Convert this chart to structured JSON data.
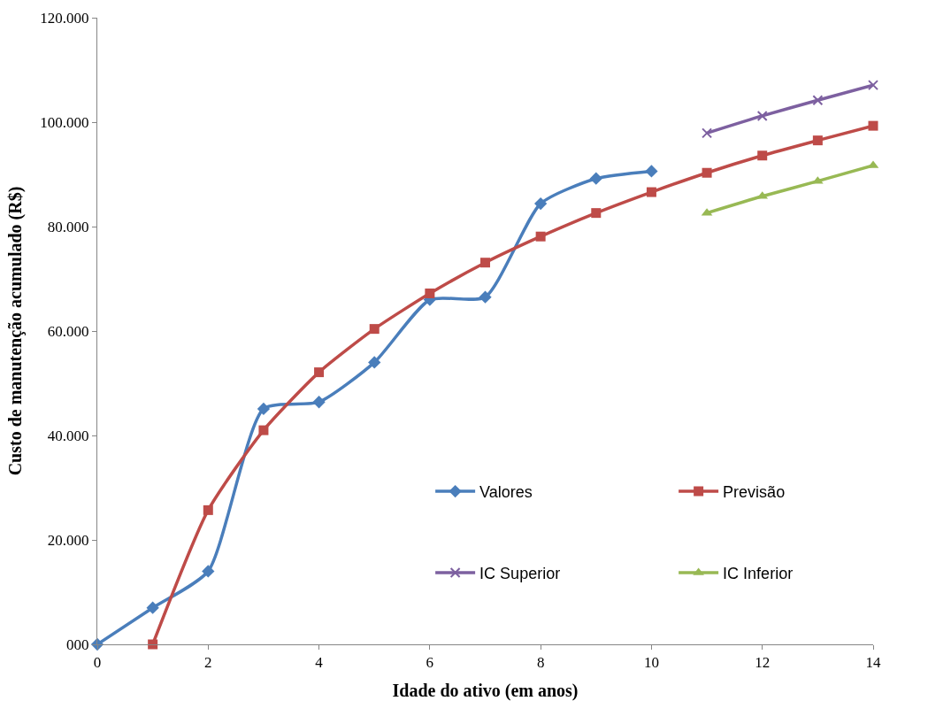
{
  "chart_data": {
    "type": "line",
    "xlabel": "Idade do ativo (em anos)",
    "ylabel": "Custo de manutenção acumulado (R$)",
    "xlim": [
      0,
      14
    ],
    "xticks": [
      0,
      2,
      4,
      6,
      8,
      10,
      12,
      14
    ],
    "ylim": [
      0,
      120000
    ],
    "yticks": [
      {
        "value": 0,
        "label": "000"
      },
      {
        "value": 20000,
        "label": "20.000"
      },
      {
        "value": 40000,
        "label": "40.000"
      },
      {
        "value": 60000,
        "label": "60.000"
      },
      {
        "value": 80000,
        "label": "80.000"
      },
      {
        "value": 100000,
        "label": "100.000"
      },
      {
        "value": 120000,
        "label": "120.000"
      }
    ],
    "legend": "bottom right",
    "line_style": "solid",
    "series": [
      {
        "name": "Valores",
        "color": "#4a7ebb",
        "marker": "diamond",
        "x": [
          0,
          1,
          2,
          3,
          4,
          5,
          6,
          7,
          8,
          9,
          10
        ],
        "values": [
          0,
          7000,
          14000,
          45100,
          46400,
          54000,
          66000,
          66500,
          84400,
          89200,
          90600
        ]
      },
      {
        "name": "Previsão",
        "color": "#be4b48",
        "marker": "square",
        "x": [
          1,
          2,
          3,
          4,
          5,
          6,
          7,
          8,
          9,
          10,
          11,
          12,
          13,
          14
        ],
        "values": [
          0,
          25700,
          41000,
          52100,
          60400,
          67200,
          73100,
          78100,
          82600,
          86600,
          90300,
          93600,
          96500,
          99300
        ]
      },
      {
        "name": "IC Superior",
        "color": "#7d60a0",
        "marker": "cross",
        "x": [
          11,
          12,
          13,
          14
        ],
        "values": [
          97900,
          101200,
          104200,
          107100
        ]
      },
      {
        "name": "IC Inferior",
        "color": "#98b954",
        "marker": "triangle",
        "x": [
          11,
          12,
          13,
          14
        ],
        "values": [
          82600,
          85800,
          88700,
          91700
        ]
      }
    ]
  }
}
